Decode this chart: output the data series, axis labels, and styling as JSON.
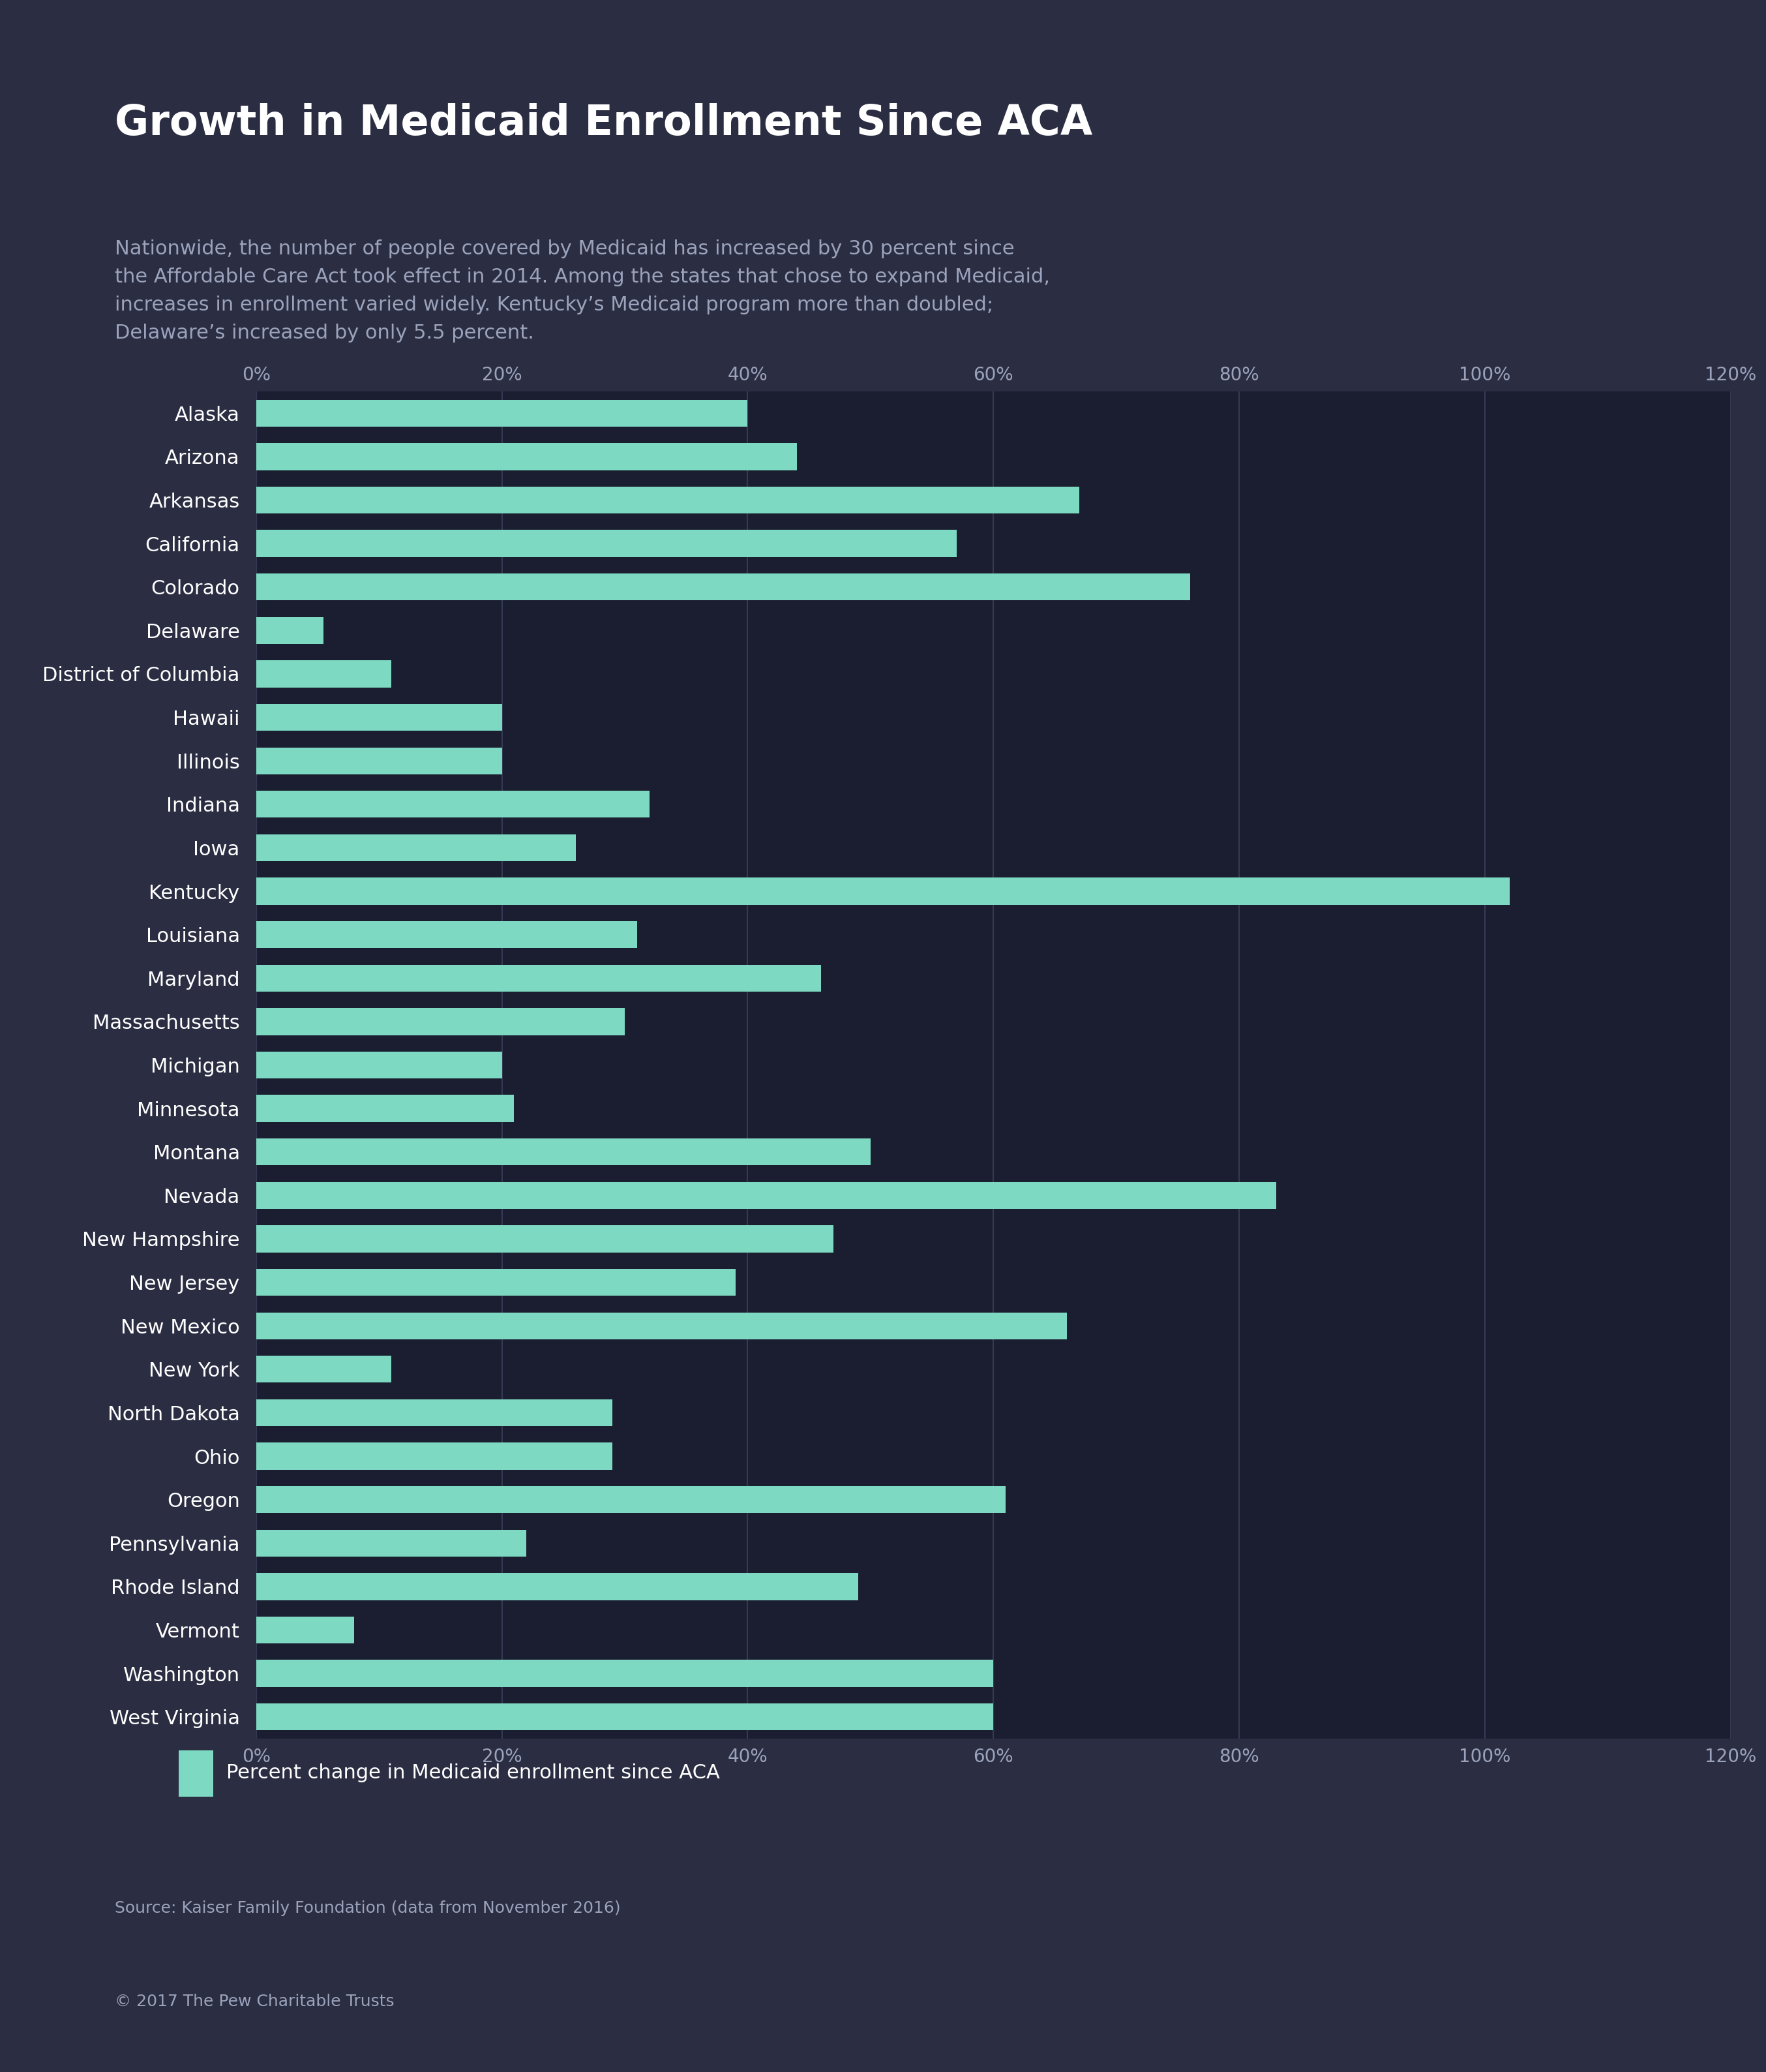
{
  "title": "Growth in Medicaid Enrollment Since ACA",
  "subtitle": "Nationwide, the number of people covered by Medicaid has increased by 30 percent since\nthe Affordable Care Act took effect in 2014. Among the states that chose to expand Medicaid,\nincreases in enrollment varied widely. Kentucky’s Medicaid program more than doubled;\nDelaware’s increased by only 5.5 percent.",
  "states": [
    "Alaska",
    "Arizona",
    "Arkansas",
    "California",
    "Colorado",
    "Delaware",
    "District of Columbia",
    "Hawaii",
    "Illinois",
    "Indiana",
    "Iowa",
    "Kentucky",
    "Louisiana",
    "Maryland",
    "Massachusetts",
    "Michigan",
    "Minnesota",
    "Montana",
    "Nevada",
    "New Hampshire",
    "New Jersey",
    "New Mexico",
    "New York",
    "North Dakota",
    "Ohio",
    "Oregon",
    "Pennsylvania",
    "Rhode Island",
    "Vermont",
    "Washington",
    "West Virginia"
  ],
  "values": [
    40,
    44,
    67,
    57,
    76,
    5.5,
    11,
    20,
    20,
    32,
    26,
    102,
    31,
    46,
    30,
    20,
    21,
    50,
    83,
    47,
    39,
    66,
    11,
    29,
    29,
    61,
    22,
    49,
    8,
    60,
    60
  ],
  "bar_color": "#7dd9c2",
  "bg_color": "#2b2d42",
  "chart_bg_color": "#1b1e30",
  "text_color": "#ffffff",
  "subtitle_color": "#9ba3bc",
  "axis_label_color": "#9ba3bc",
  "grid_color": "#353a54",
  "legend_label": "Percent change in Medicaid enrollment since ACA",
  "source_text": "Source: Kaiser Family Foundation (data from November 2016)",
  "copyright_text": "© 2017 The Pew Charitable Trusts",
  "xlim": [
    0,
    120
  ],
  "xtick_values": [
    0,
    20,
    40,
    60,
    80,
    100,
    120
  ],
  "xtick_labels": [
    "0%",
    "20%",
    "40%",
    "60%",
    "80%",
    "100%",
    "120%"
  ]
}
